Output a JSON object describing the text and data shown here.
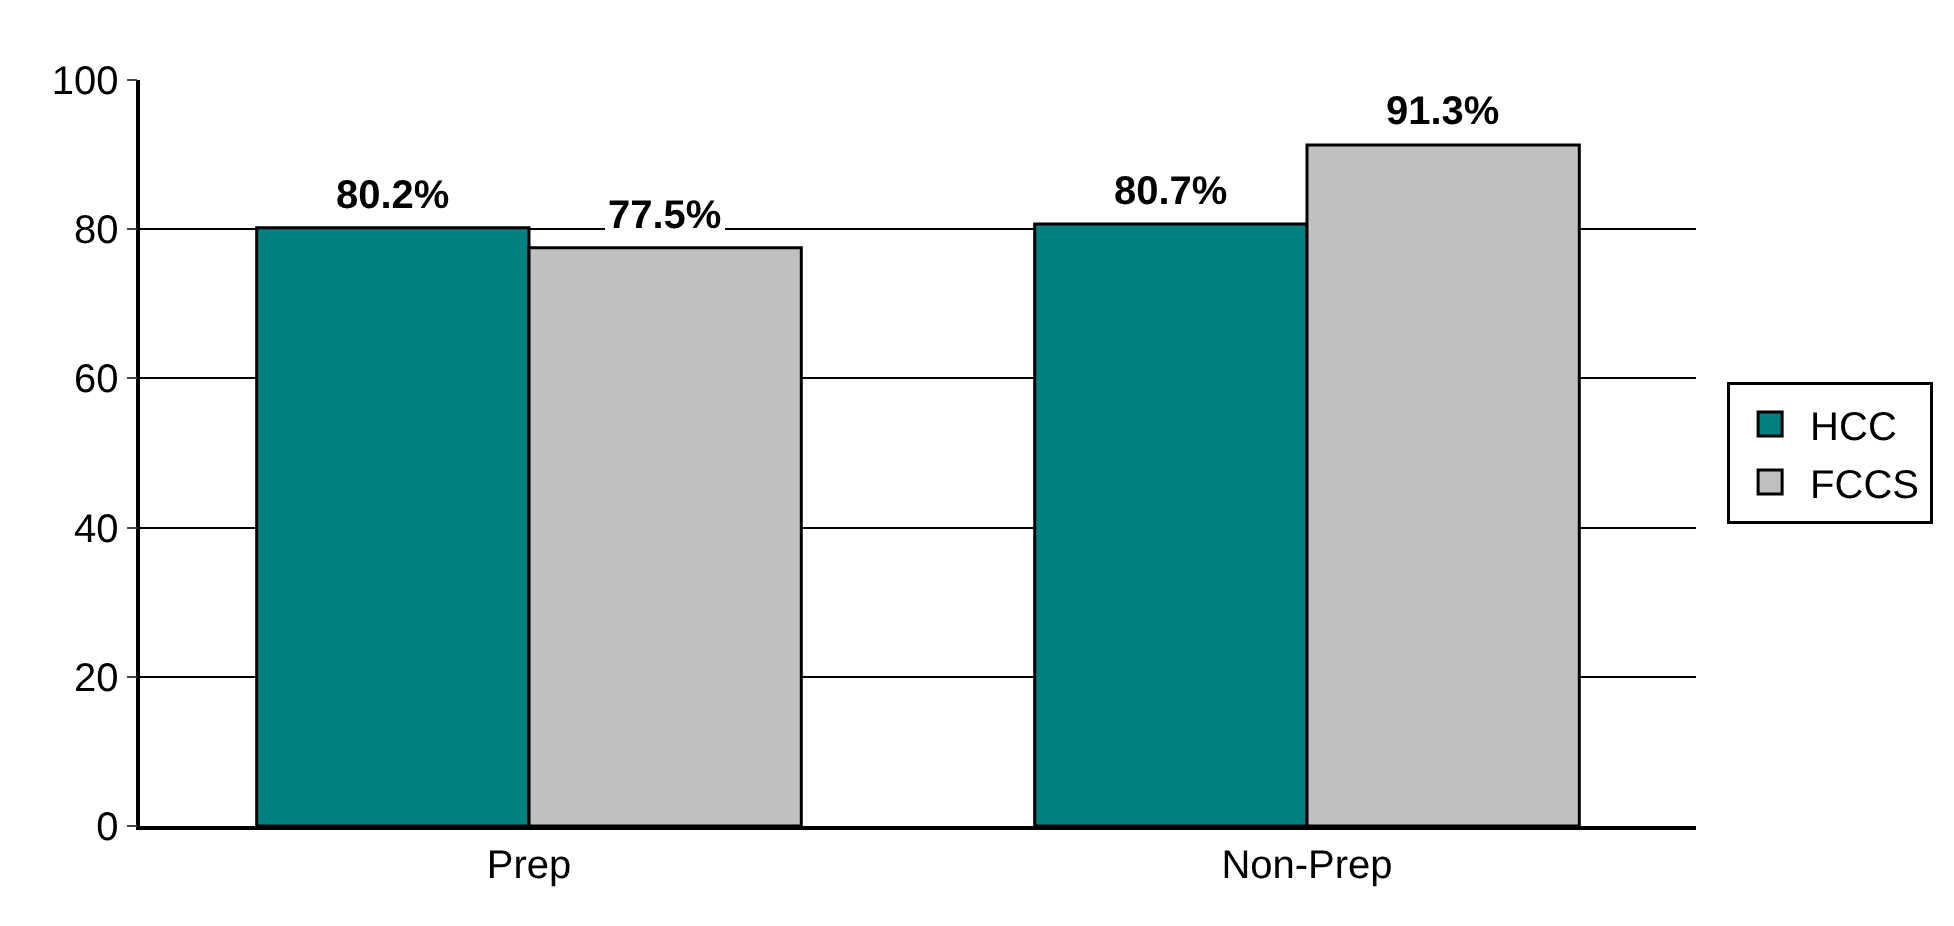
{
  "chart_data": {
    "type": "bar",
    "categories": [
      "Prep",
      "Non-Prep"
    ],
    "series": [
      {
        "name": "HCC",
        "color": "#008080",
        "values": [
          80.2,
          80.7
        ],
        "value_labels": [
          "80.2%",
          "80.7%"
        ]
      },
      {
        "name": "FCCS",
        "color": "#c0c0c0",
        "values": [
          77.5,
          91.3
        ],
        "value_labels": [
          "77.5%",
          "91.3%"
        ]
      }
    ],
    "ylim": [
      0,
      100
    ],
    "yticks": [
      0,
      20,
      40,
      60,
      80,
      100
    ],
    "grid": "y",
    "legend": "right"
  }
}
